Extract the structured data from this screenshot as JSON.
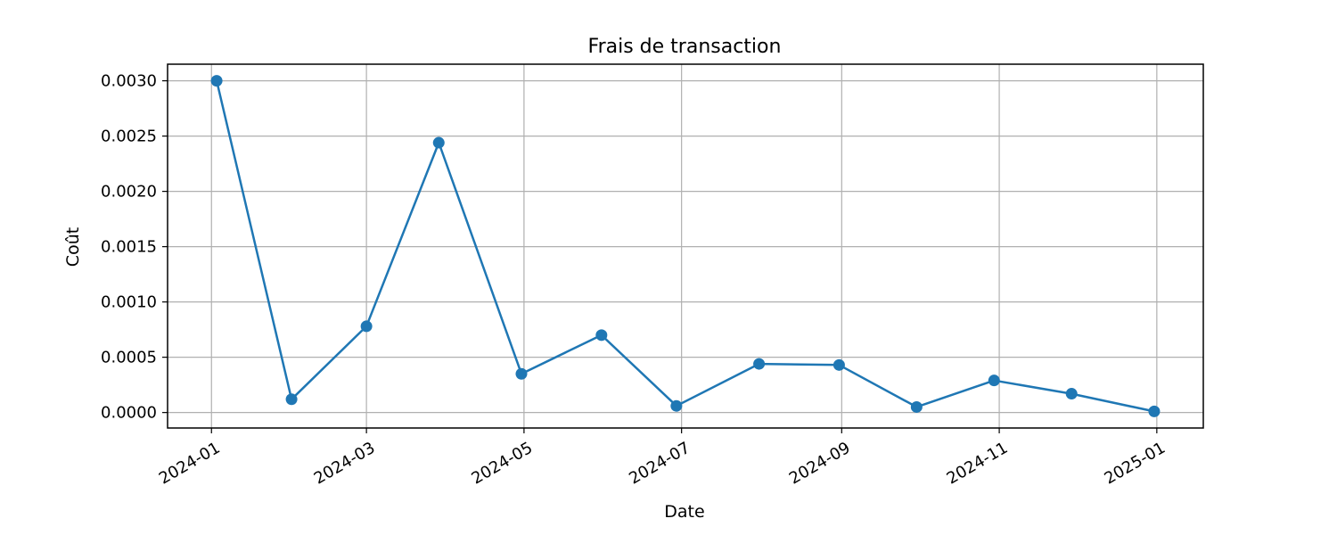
{
  "chart_data": {
    "type": "line",
    "title": "Frais de transaction",
    "xlabel": "Date",
    "ylabel": "Coût",
    "x": [
      "2024-01-03",
      "2024-02-01",
      "2024-03-01",
      "2024-03-29",
      "2024-04-30",
      "2024-05-31",
      "2024-06-29",
      "2024-07-31",
      "2024-08-31",
      "2024-09-30",
      "2024-10-30",
      "2024-11-29",
      "2024-12-31"
    ],
    "series": [
      {
        "values": [
          0.003,
          0.00012,
          0.00078,
          0.00244,
          0.00035,
          0.0007,
          6e-05,
          0.00044,
          0.00043,
          5e-05,
          0.00029,
          0.00017,
          1e-05
        ]
      }
    ],
    "xticks": [
      "2024-01-01",
      "2024-03-01",
      "2024-05-01",
      "2024-07-01",
      "2024-09-01",
      "2024-11-01",
      "2025-01-01"
    ],
    "xtick_labels": [
      "2024-01",
      "2024-03",
      "2024-05",
      "2024-07",
      "2024-09",
      "2024-11",
      "2025-01"
    ],
    "yticks": [
      0.0,
      0.0005,
      0.001,
      0.0015,
      0.002,
      0.0025,
      0.003
    ],
    "ytick_labels": [
      "0.0000",
      "0.0005",
      "0.0010",
      "0.0015",
      "0.0020",
      "0.0025",
      "0.0030"
    ],
    "xlim": [
      "2023-12-15",
      "2025-01-19"
    ],
    "ylim": [
      -0.00014,
      0.00315
    ],
    "grid": true,
    "color": "#1f77b4"
  }
}
